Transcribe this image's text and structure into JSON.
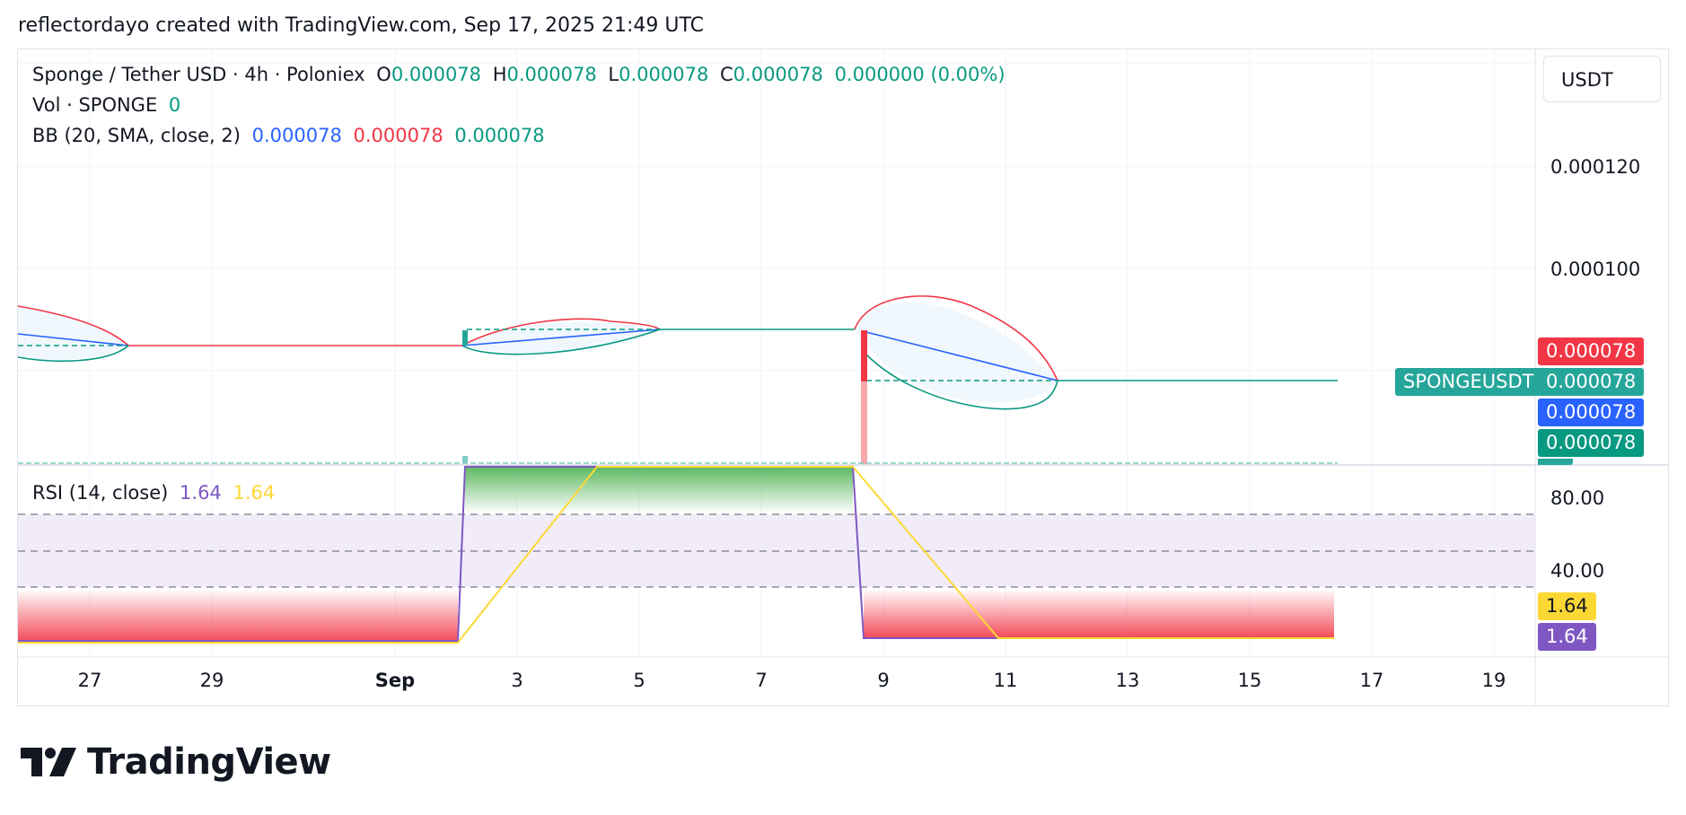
{
  "header": {
    "text": "reflectordayo created with TradingView.com, Sep 17, 2025 21:49 UTC"
  },
  "legend": {
    "symbol": "Sponge / Tether USD · 4h · Poloniex",
    "o_label": "O",
    "o_value": "0.000078",
    "h_label": "H",
    "h_value": "0.000078",
    "l_label": "L",
    "l_value": "0.000078",
    "c_label": "C",
    "c_value": "0.000078",
    "change": "0.000000 (0.00%)",
    "vol_label": "Vol · SPONGE",
    "vol_value": "0",
    "bb_label": "BB (20, SMA, close, 2)",
    "bb_basis": "0.000078",
    "bb_upper": "0.000078",
    "bb_lower": "0.000078"
  },
  "rsi_legend": {
    "label": "RSI (14, close)",
    "value1": "1.64",
    "value2": "1.64"
  },
  "currency": "USDT",
  "price_axis": {
    "ticks": [
      "0.000120",
      "0.000100"
    ]
  },
  "rsi_axis": {
    "ticks": [
      "80.00",
      "40.00"
    ]
  },
  "price_tags": {
    "upper": "0.000078",
    "symbol_name": "SPONGEUSDT",
    "last": "0.000078",
    "basis": "0.000078",
    "lower": "0.000078"
  },
  "rsi_tags": {
    "rsi": "1.64",
    "rsi_ma": "1.64"
  },
  "x_axis": {
    "ticks": [
      "27",
      "29",
      "Sep",
      "3",
      "5",
      "7",
      "9",
      "11",
      "13",
      "15",
      "17",
      "19"
    ]
  },
  "logo": {
    "text": "TradingView"
  },
  "colors": {
    "up": "#089981",
    "down": "#f23645",
    "basis": "#2962ff",
    "rsi_line": "#7e57c2",
    "rsi_ma": "#fdd835",
    "rsi_band": "#ede7f6"
  }
}
